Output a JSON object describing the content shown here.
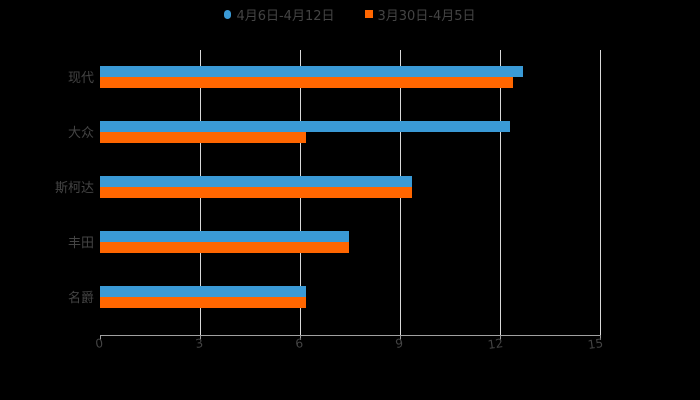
{
  "chart_data": {
    "type": "bar",
    "orientation": "horizontal",
    "title": "",
    "categories": [
      "现代",
      "大众",
      "斯柯达",
      "丰田",
      "名爵"
    ],
    "series": [
      {
        "name": "4月6日-4月12日",
        "color": "#3a9ad6",
        "values": [
          12.7,
          12.3,
          9.35,
          7.48,
          6.18
        ]
      },
      {
        "name": "3月30日-4月5日",
        "color": "#ff6600",
        "values": [
          12.4,
          6.18,
          9.35,
          7.48,
          6.18
        ]
      }
    ],
    "xlabel": "",
    "ylabel": "",
    "xlim": [
      0,
      15
    ],
    "xticks": [
      "0",
      "3",
      "6",
      "9",
      "12",
      "15"
    ],
    "grid": true,
    "legend_position": "top"
  },
  "legend": {
    "items": [
      {
        "label": "4月6日-4月12日",
        "color": "#3a9ad6"
      },
      {
        "label": "3月30日-4月5日",
        "color": "#ff6600"
      }
    ]
  }
}
